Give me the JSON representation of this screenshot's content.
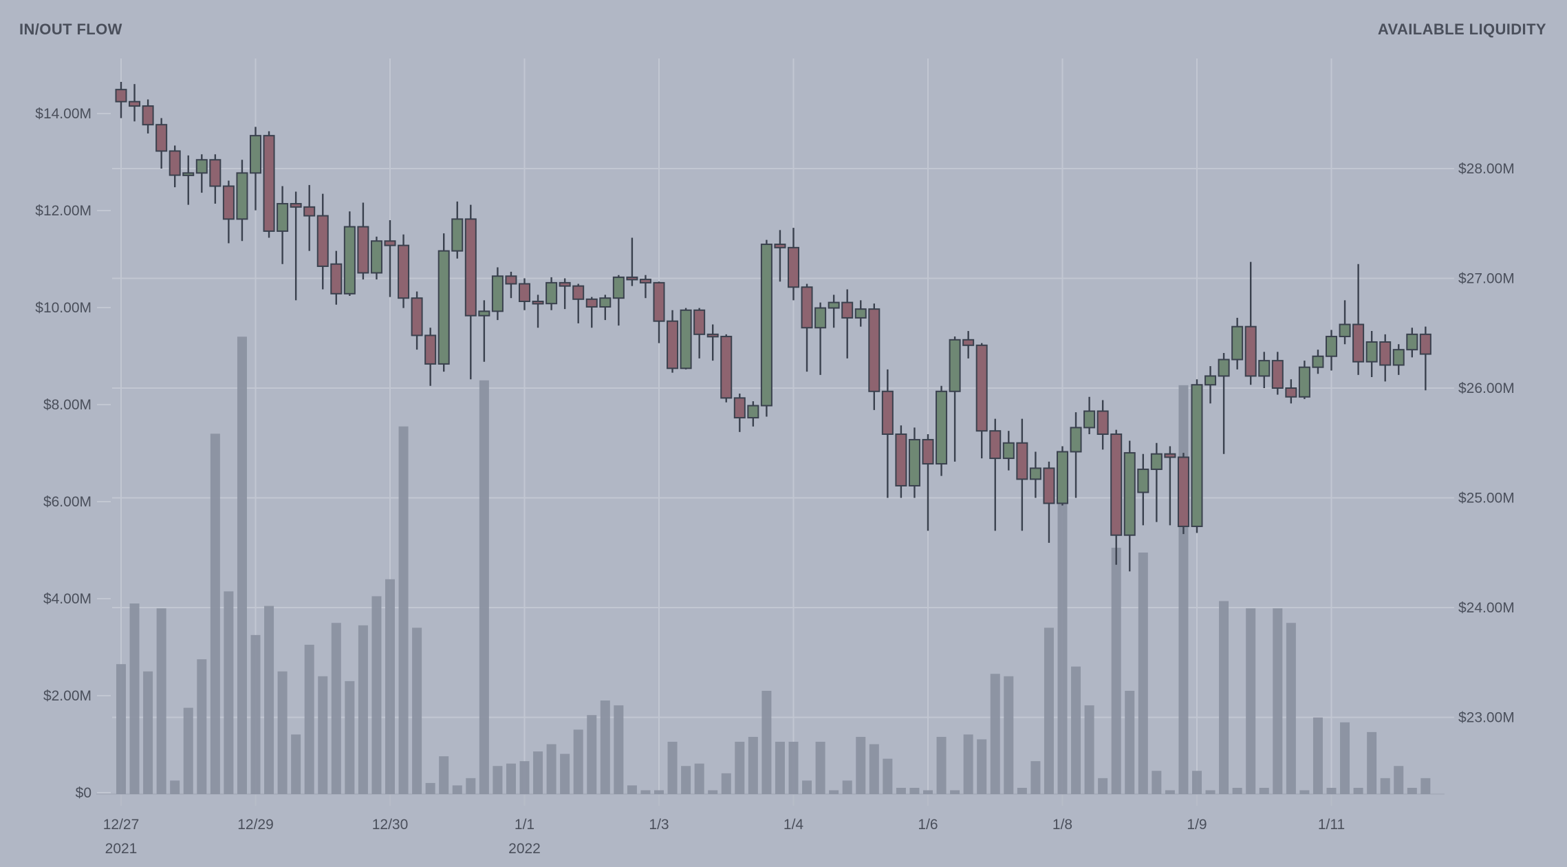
{
  "header": {
    "left_title": "IN/OUT FLOW",
    "right_title": "AVAILABLE LIQUIDITY"
  },
  "chart_data": {
    "type": "candlestick+volume",
    "title": "",
    "candle_interval_hours": 4,
    "legend_position": "none",
    "grid": true,
    "left_axis": {
      "title": "IN/OUT FLOW",
      "unit": "USD",
      "range_millions": [
        0,
        14
      ],
      "ticks": [
        {
          "label": "$0",
          "value": 0
        },
        {
          "label": "$2.00M",
          "value": 2
        },
        {
          "label": "$4.00M",
          "value": 4
        },
        {
          "label": "$6.00M",
          "value": 6
        },
        {
          "label": "$8.00M",
          "value": 8
        },
        {
          "label": "$10.00M",
          "value": 10
        },
        {
          "label": "$12.00M",
          "value": 12
        },
        {
          "label": "$14.00M",
          "value": 14
        }
      ]
    },
    "right_axis": {
      "title": "AVAILABLE LIQUIDITY",
      "unit": "USD",
      "range_millions": [
        23,
        28
      ],
      "ticks": [
        {
          "label": "$23.00M",
          "value": 23
        },
        {
          "label": "$24.00M",
          "value": 24
        },
        {
          "label": "$25.00M",
          "value": 25
        },
        {
          "label": "$26.00M",
          "value": 26
        },
        {
          "label": "$27.00M",
          "value": 27
        },
        {
          "label": "$28.00M",
          "value": 28
        }
      ]
    },
    "x_axis": {
      "ticks": [
        {
          "label": "12/27",
          "candle_index": 0,
          "year_label": "2021"
        },
        {
          "label": "12/29",
          "candle_index": 10
        },
        {
          "label": "12/30",
          "candle_index": 20
        },
        {
          "label": "1/1",
          "candle_index": 30,
          "year_label": "2022"
        },
        {
          "label": "1/3",
          "candle_index": 40
        },
        {
          "label": "1/4",
          "candle_index": 50
        },
        {
          "label": "1/6",
          "candle_index": 60
        },
        {
          "label": "1/8",
          "candle_index": 70
        },
        {
          "label": "1/9",
          "candle_index": 80
        },
        {
          "label": "1/11",
          "candle_index": 90
        }
      ]
    },
    "series": [
      {
        "name": "available-liquidity-candles",
        "axis": "right",
        "format": "[open, high, low, close] in USD millions",
        "candles": [
          [
            28.72,
            28.79,
            28.46,
            28.61
          ],
          [
            28.61,
            28.77,
            28.43,
            28.57
          ],
          [
            28.57,
            28.63,
            28.32,
            28.4
          ],
          [
            28.4,
            28.46,
            28.0,
            28.16
          ],
          [
            28.16,
            28.21,
            27.83,
            27.94
          ],
          [
            27.94,
            28.12,
            27.67,
            27.96
          ],
          [
            27.96,
            28.13,
            27.78,
            28.08
          ],
          [
            28.08,
            28.13,
            27.68,
            27.84
          ],
          [
            27.84,
            27.89,
            27.32,
            27.54
          ],
          [
            27.54,
            28.08,
            27.34,
            27.96
          ],
          [
            27.96,
            28.38,
            27.62,
            28.3
          ],
          [
            28.3,
            28.34,
            27.37,
            27.43
          ],
          [
            27.43,
            27.84,
            27.13,
            27.68
          ],
          [
            27.68,
            27.79,
            26.8,
            27.65
          ],
          [
            27.65,
            27.85,
            27.25,
            27.57
          ],
          [
            27.57,
            27.77,
            26.9,
            27.11
          ],
          [
            27.13,
            27.25,
            26.76,
            26.86
          ],
          [
            26.86,
            27.61,
            26.84,
            27.47
          ],
          [
            27.47,
            27.69,
            26.99,
            27.05
          ],
          [
            27.05,
            27.38,
            26.99,
            27.34
          ],
          [
            27.34,
            27.53,
            26.83,
            27.3
          ],
          [
            27.3,
            27.4,
            26.73,
            26.82
          ],
          [
            26.82,
            26.88,
            26.35,
            26.48
          ],
          [
            26.48,
            26.55,
            26.02,
            26.22
          ],
          [
            26.22,
            27.41,
            26.15,
            27.25
          ],
          [
            27.25,
            27.7,
            27.18,
            27.54
          ],
          [
            27.54,
            27.67,
            26.08,
            26.66
          ],
          [
            26.66,
            26.8,
            26.24,
            26.7
          ],
          [
            26.7,
            27.1,
            26.62,
            27.02
          ],
          [
            27.02,
            27.06,
            26.82,
            26.95
          ],
          [
            26.95,
            27.0,
            26.71,
            26.79
          ],
          [
            26.79,
            26.85,
            26.55,
            26.77
          ],
          [
            26.77,
            27.01,
            26.71,
            26.96
          ],
          [
            26.96,
            27.0,
            26.72,
            26.93
          ],
          [
            26.93,
            26.95,
            26.59,
            26.81
          ],
          [
            26.81,
            26.83,
            26.55,
            26.74
          ],
          [
            26.74,
            26.85,
            26.62,
            26.82
          ],
          [
            26.82,
            27.03,
            26.57,
            27.01
          ],
          [
            27.01,
            27.37,
            26.93,
            26.99
          ],
          [
            26.99,
            27.03,
            26.82,
            26.96
          ],
          [
            26.96,
            26.97,
            26.41,
            26.61
          ],
          [
            26.61,
            26.71,
            26.14,
            26.18
          ],
          [
            26.18,
            26.73,
            26.17,
            26.71
          ],
          [
            26.71,
            26.73,
            26.27,
            26.49
          ],
          [
            26.49,
            26.58,
            26.25,
            26.47
          ],
          [
            26.47,
            26.49,
            25.87,
            25.91
          ],
          [
            25.91,
            25.95,
            25.6,
            25.73
          ],
          [
            25.73,
            25.88,
            25.65,
            25.84
          ],
          [
            25.84,
            27.35,
            25.74,
            27.31
          ],
          [
            27.31,
            27.44,
            26.97,
            27.28
          ],
          [
            27.28,
            27.46,
            26.8,
            26.92
          ],
          [
            26.92,
            26.95,
            26.15,
            26.55
          ],
          [
            26.55,
            26.78,
            26.12,
            26.73
          ],
          [
            26.73,
            26.85,
            26.55,
            26.78
          ],
          [
            26.78,
            26.9,
            26.27,
            26.64
          ],
          [
            26.64,
            26.8,
            26.56,
            26.72
          ],
          [
            26.72,
            26.77,
            25.8,
            25.97
          ],
          [
            25.97,
            26.17,
            25.0,
            25.58
          ],
          [
            25.58,
            25.66,
            25.0,
            25.11
          ],
          [
            25.11,
            25.64,
            25.0,
            25.53
          ],
          [
            25.53,
            25.58,
            24.7,
            25.31
          ],
          [
            25.31,
            26.02,
            25.2,
            25.97
          ],
          [
            25.97,
            26.47,
            25.33,
            26.44
          ],
          [
            26.44,
            26.52,
            26.27,
            26.39
          ],
          [
            26.39,
            26.41,
            25.36,
            25.61
          ],
          [
            25.61,
            25.72,
            24.7,
            25.36
          ],
          [
            25.36,
            25.61,
            25.25,
            25.5
          ],
          [
            25.5,
            25.72,
            24.7,
            25.17
          ],
          [
            25.17,
            25.42,
            25.0,
            25.27
          ],
          [
            25.27,
            25.33,
            24.59,
            24.95
          ],
          [
            24.95,
            25.47,
            24.93,
            25.42
          ],
          [
            25.42,
            25.78,
            25.0,
            25.64
          ],
          [
            25.64,
            25.92,
            25.58,
            25.79
          ],
          [
            25.79,
            25.89,
            25.44,
            25.58
          ],
          [
            25.58,
            25.62,
            24.39,
            24.66
          ],
          [
            24.66,
            25.52,
            24.33,
            25.41
          ],
          [
            25.05,
            25.4,
            24.75,
            25.26
          ],
          [
            25.26,
            25.5,
            24.78,
            25.4
          ],
          [
            25.4,
            25.47,
            24.75,
            25.37
          ],
          [
            25.37,
            25.41,
            24.67,
            24.74
          ],
          [
            24.74,
            26.08,
            24.68,
            26.03
          ],
          [
            26.03,
            26.2,
            25.86,
            26.11
          ],
          [
            26.11,
            26.32,
            25.4,
            26.26
          ],
          [
            26.26,
            26.64,
            26.17,
            26.56
          ],
          [
            26.56,
            27.15,
            26.03,
            26.11
          ],
          [
            26.11,
            26.33,
            26.0,
            26.25
          ],
          [
            26.25,
            26.33,
            25.94,
            26.0
          ],
          [
            26.0,
            26.08,
            25.86,
            25.92
          ],
          [
            25.92,
            26.25,
            25.9,
            26.19
          ],
          [
            26.19,
            26.35,
            26.13,
            26.29
          ],
          [
            26.29,
            26.53,
            26.16,
            26.47
          ],
          [
            26.47,
            26.8,
            26.4,
            26.58
          ],
          [
            26.58,
            27.13,
            26.12,
            26.24
          ],
          [
            26.24,
            26.52,
            26.1,
            26.42
          ],
          [
            26.42,
            26.49,
            26.06,
            26.21
          ],
          [
            26.21,
            26.4,
            26.12,
            26.35
          ],
          [
            26.35,
            26.55,
            26.28,
            26.49
          ],
          [
            26.49,
            26.56,
            25.98,
            26.31
          ]
        ]
      },
      {
        "name": "in-out-flow-volume",
        "axis": "left",
        "format": "USD millions",
        "values": [
          2.65,
          3.9,
          2.5,
          3.8,
          0.25,
          1.75,
          2.75,
          7.4,
          4.15,
          9.4,
          3.25,
          3.85,
          2.5,
          1.2,
          3.05,
          2.4,
          3.5,
          2.3,
          3.45,
          4.05,
          4.4,
          7.55,
          3.4,
          0.2,
          0.75,
          0.15,
          0.3,
          8.5,
          0.55,
          0.6,
          0.65,
          0.85,
          1.0,
          0.8,
          1.3,
          1.6,
          1.9,
          1.8,
          0.15,
          0.05,
          0.05,
          1.05,
          0.55,
          0.6,
          0.05,
          0.4,
          1.05,
          1.15,
          2.1,
          1.05,
          1.05,
          0.25,
          1.05,
          0.05,
          0.25,
          1.15,
          1.0,
          0.7,
          0.1,
          0.1,
          0.05,
          1.15,
          0.05,
          1.2,
          1.1,
          2.45,
          2.4,
          0.1,
          0.65,
          3.4,
          6.0,
          2.6,
          1.8,
          0.3,
          5.05,
          2.1,
          4.95,
          0.45,
          0.05,
          8.4,
          0.45,
          0.05,
          3.95,
          0.1,
          3.8,
          0.1,
          3.8,
          3.5,
          0.05,
          1.55,
          0.1,
          1.45,
          0.1,
          1.25,
          0.3,
          0.55,
          0.1,
          0.3
        ]
      }
    ],
    "colors": {
      "background": "#B1B7C5",
      "grid": "#C2C7D2",
      "candle_up": "#6F8874",
      "candle_down": "#8E6470",
      "candle_outline": "#3A414E",
      "volume_bar": "#8A90A0",
      "axis_text": "#4A4F5B",
      "baseline": "#A7ADBB",
      "tick_mark": "#B7BCC8"
    }
  }
}
